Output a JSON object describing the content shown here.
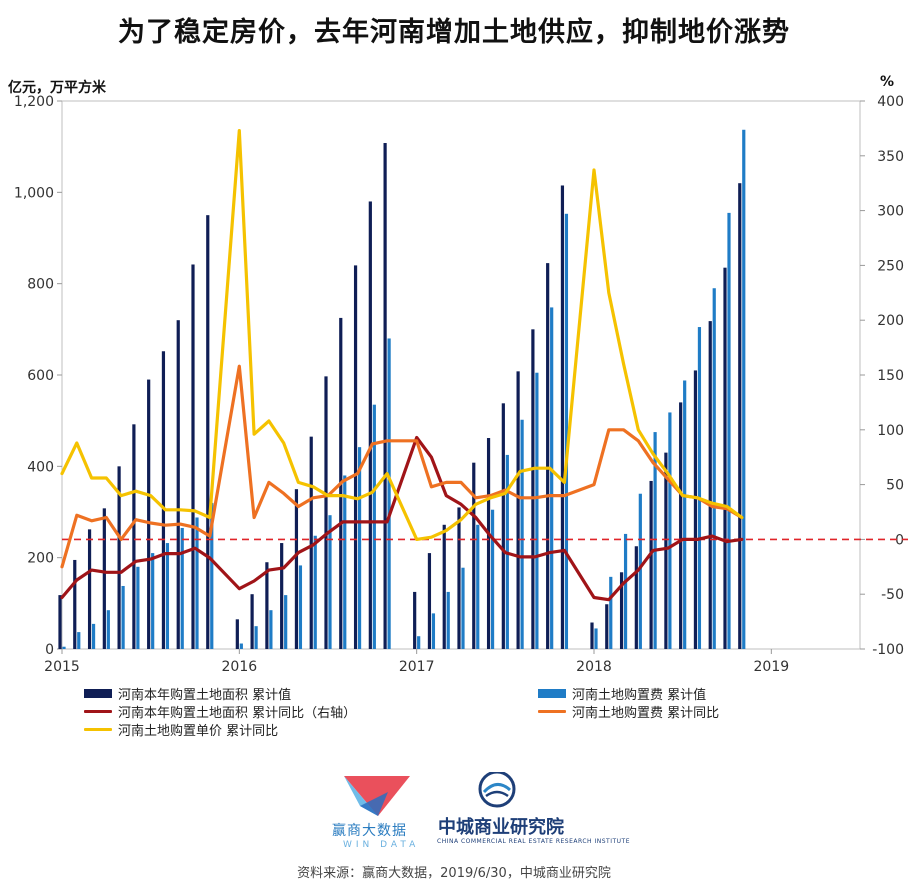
{
  "title": "为了稳定房价，去年河南增加土地供应，抑制地价涨势",
  "left_unit": "亿元，万平方米",
  "right_unit": "%",
  "legend": [
    {
      "label": "河南本年购置土地面积 累计值",
      "color": "#0f1e55",
      "kind": "bar"
    },
    {
      "label": "河南土地购置费 累计值",
      "color": "#1f7cc6",
      "kind": "bar"
    },
    {
      "label": "河南本年购置土地面积 累计同比（右轴）",
      "color": "#a01418",
      "kind": "line"
    },
    {
      "label": "河南土地购置费 累计同比",
      "color": "#ee7122",
      "kind": "line"
    },
    {
      "label": "河南土地购置单价 累计同比",
      "color": "#f5c200",
      "kind": "line"
    }
  ],
  "source": "资料来源：赢商大数据，2019/6/30，中城商业研究院",
  "logos": {
    "windata_name": "赢商大数据",
    "windata_sub": "WIN DATA",
    "zc_name": "中城商业研究院",
    "zc_sub": "CHINA COMMERCIAL REAL ESTATE RESEARCH INSTITUTE"
  },
  "chart_data": {
    "type": "bar+line",
    "x_ticks": [
      "2015",
      "2016",
      "2017",
      "2018",
      "2019"
    ],
    "left_axis": {
      "min": 0,
      "max": 1200,
      "ticks": [
        0,
        200,
        400,
        600,
        800,
        1000,
        1200
      ],
      "tick_labels": [
        "0",
        "200",
        "400",
        "600",
        "800",
        "1,000",
        "1,200"
      ]
    },
    "right_axis": {
      "min": -100,
      "max": 400,
      "ticks": [
        -100,
        -50,
        0,
        50,
        100,
        150,
        200,
        250,
        300,
        350,
        400
      ],
      "tick_labels": [
        "-100",
        "-50",
        "0",
        "50",
        "100",
        "150",
        "200",
        "250",
        "300",
        "350",
        "400"
      ]
    },
    "reference_line_right": 0,
    "x_positions": [
      2015.0,
      2015.0833,
      2015.1667,
      2015.25,
      2015.3333,
      2015.4167,
      2015.5,
      2015.5833,
      2015.6667,
      2015.75,
      2015.8333,
      2015.9167,
      2016.0,
      2016.0833,
      2016.1667,
      2016.25,
      2016.3333,
      2016.4167,
      2016.5,
      2016.5833,
      2016.6667,
      2016.75,
      2016.8333,
      2016.9167,
      2017.0,
      2017.0833,
      2017.1667,
      2017.25,
      2017.3333,
      2017.4167,
      2017.5,
      2017.5833,
      2017.6667,
      2017.75,
      2017.8333,
      2017.9167,
      2018.0,
      2018.0833,
      2018.1667,
      2018.25,
      2018.3333,
      2018.4167,
      2018.5,
      2018.5833,
      2018.6667,
      2018.75,
      2018.8333,
      2018.9167
    ],
    "series": [
      {
        "name": "河南本年购置土地面积 累计值",
        "axis": "left",
        "kind": "bar",
        "values": [
          118,
          195,
          262,
          308,
          400,
          492,
          590,
          652,
          720,
          842,
          950,
          null,
          65,
          120,
          190,
          232,
          350,
          465,
          597,
          725,
          840,
          980,
          1108,
          null,
          125,
          210,
          272,
          310,
          408,
          462,
          538,
          608,
          700,
          845,
          1015,
          null,
          58,
          98,
          168,
          225,
          368,
          430,
          540,
          610,
          718,
          835,
          1020,
          null
        ]
      },
      {
        "name": "河南土地购置费 累计值",
        "axis": "left",
        "kind": "bar",
        "values": [
          5,
          37,
          55,
          85,
          138,
          180,
          210,
          232,
          265,
          288,
          320,
          null,
          12,
          50,
          85,
          118,
          183,
          248,
          293,
          380,
          442,
          535,
          680,
          null,
          28,
          78,
          125,
          178,
          272,
          305,
          425,
          502,
          605,
          748,
          953,
          null,
          45,
          158,
          252,
          340,
          475,
          518,
          588,
          705,
          790,
          955,
          1137,
          null
        ]
      },
      {
        "name": "河南本年购置土地面积 累计同比（右轴）",
        "axis": "right",
        "kind": "line",
        "values": [
          -53,
          -37,
          -28,
          -30,
          -30,
          -20,
          -18,
          -13,
          -13,
          -8,
          -17,
          null,
          -45,
          -38,
          -28,
          -26,
          -12,
          -5,
          6,
          16,
          16,
          16,
          16,
          null,
          93,
          75,
          40,
          32,
          20,
          3,
          -12,
          -16,
          -16,
          -12,
          -10,
          null,
          -53,
          -55,
          -40,
          -28,
          -10,
          -8,
          0,
          0,
          3,
          -2,
          0,
          null
        ]
      },
      {
        "name": "河南土地购置费 累计同比",
        "axis": "right",
        "kind": "line",
        "values": [
          -25,
          22,
          17,
          20,
          0,
          18,
          15,
          13,
          14,
          11,
          3,
          null,
          158,
          20,
          52,
          42,
          30,
          38,
          40,
          53,
          60,
          87,
          90,
          null,
          90,
          48,
          52,
          52,
          38,
          40,
          45,
          38,
          38,
          40,
          40,
          null,
          50,
          100,
          100,
          90,
          70,
          55,
          40,
          38,
          30,
          28,
          20,
          null
        ]
      },
      {
        "name": "河南土地购置单价 累计同比",
        "axis": "right",
        "kind": "line",
        "values": [
          60,
          88,
          56,
          56,
          40,
          44,
          40,
          27,
          27,
          26,
          20,
          null,
          373,
          96,
          108,
          88,
          52,
          48,
          40,
          40,
          37,
          43,
          60,
          null,
          0,
          2,
          8,
          18,
          32,
          38,
          42,
          62,
          65,
          65,
          52,
          null,
          337,
          225,
          160,
          100,
          78,
          60,
          40,
          38,
          33,
          30,
          20,
          null
        ]
      }
    ]
  }
}
